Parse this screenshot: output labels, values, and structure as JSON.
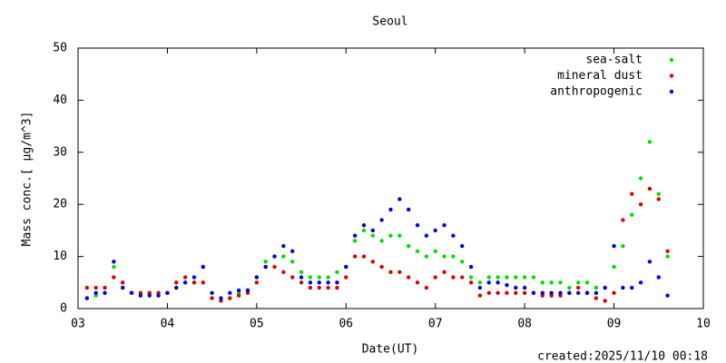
{
  "chart_data": {
    "type": "scatter",
    "title": "Seoul",
    "xlabel": "Date(UT)",
    "ylabel": "Mass conc.[ μg/m^3]",
    "footer": "created:2025/11/10 00:18",
    "xlim": [
      3,
      10
    ],
    "ylim": [
      0,
      50
    ],
    "xticks": [
      {
        "value": 3,
        "label": "03"
      },
      {
        "value": 4,
        "label": "04"
      },
      {
        "value": 5,
        "label": "05"
      },
      {
        "value": 6,
        "label": "06"
      },
      {
        "value": 7,
        "label": "07"
      },
      {
        "value": 8,
        "label": "08"
      },
      {
        "value": 9,
        "label": "09"
      },
      10
    ],
    "yticks": [
      0,
      10,
      20,
      30,
      40,
      50
    ],
    "legend": "top-right",
    "x": [
      3.1,
      3.2,
      3.3,
      3.4,
      3.5,
      3.6,
      3.7,
      3.8,
      3.9,
      4.0,
      4.1,
      4.2,
      4.3,
      4.4,
      4.5,
      4.6,
      4.7,
      4.8,
      4.9,
      5.0,
      5.1,
      5.2,
      5.3,
      5.4,
      5.5,
      5.6,
      5.7,
      5.8,
      5.9,
      6.0,
      6.1,
      6.2,
      6.3,
      6.4,
      6.5,
      6.6,
      6.7,
      6.8,
      6.9,
      7.0,
      7.1,
      7.2,
      7.3,
      7.4,
      7.5,
      7.6,
      7.7,
      7.8,
      7.9,
      8.0,
      8.1,
      8.2,
      8.3,
      8.4,
      8.5,
      8.6,
      8.7,
      8.8,
      8.9,
      9.0,
      9.1,
      9.2,
      9.3,
      9.4,
      9.5,
      9.6
    ],
    "series": [
      {
        "name": "sea-salt",
        "color": "#00e000",
        "values": [
          2,
          2.5,
          3,
          8,
          4,
          3,
          3,
          3,
          3,
          3,
          4,
          5,
          5,
          8,
          2,
          1.5,
          2,
          3,
          3.5,
          6,
          9,
          10,
          10,
          9,
          7,
          6,
          6,
          6,
          7,
          8,
          13,
          15,
          14,
          13,
          14,
          14,
          12,
          11,
          10,
          11,
          10,
          10,
          9,
          6,
          5,
          6,
          6,
          6,
          6,
          6,
          6,
          5,
          5,
          5,
          4,
          5,
          5,
          4,
          4,
          8,
          12,
          18,
          25,
          32,
          22,
          10
        ]
      },
      {
        "name": "mineral dust",
        "color": "#e00000",
        "values": [
          4,
          4,
          4,
          6,
          5,
          3,
          3,
          3,
          3,
          3,
          5,
          6,
          5,
          5,
          2,
          1.5,
          2,
          2.5,
          3,
          5,
          8,
          8,
          7,
          6,
          5,
          4,
          4,
          4,
          4,
          6,
          10,
          10,
          9,
          8,
          7,
          7,
          6,
          5,
          4,
          6,
          7,
          6,
          6,
          5,
          2.5,
          3,
          3,
          3,
          3,
          3,
          3,
          2.5,
          2.5,
          2.5,
          3,
          4,
          3,
          2,
          1.5,
          3,
          17,
          22,
          20,
          23,
          21,
          11
        ]
      },
      {
        "name": "anthropogenic",
        "color": "#0000e0",
        "values": [
          2,
          3,
          3,
          9,
          4,
          3,
          2.5,
          2.5,
          2.5,
          3,
          4,
          5,
          6,
          8,
          3,
          2,
          3,
          3.5,
          3.5,
          6,
          8,
          10,
          12,
          11,
          6,
          5,
          5,
          5,
          5,
          8,
          14,
          16,
          15,
          17,
          19,
          21,
          19,
          16,
          14,
          15,
          16,
          14,
          12,
          8,
          4,
          5,
          5,
          4.5,
          4,
          4,
          3,
          3,
          3,
          3,
          3,
          3,
          3,
          3,
          4,
          12,
          4,
          4,
          5,
          9,
          6,
          2.5
        ]
      }
    ]
  }
}
